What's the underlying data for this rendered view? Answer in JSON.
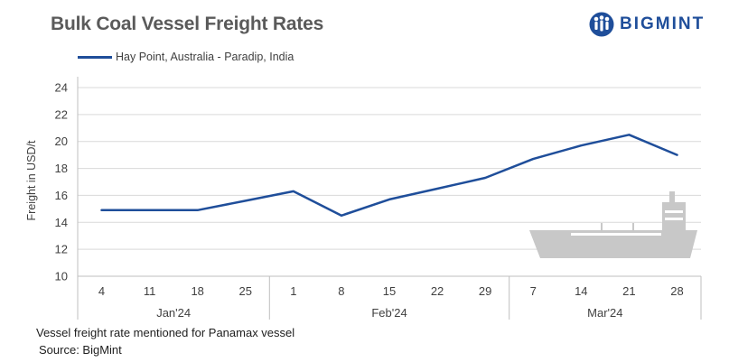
{
  "header": {
    "title": "Bulk Coal Vessel Freight Rates",
    "logo_text": "BIGMINT"
  },
  "footer": {
    "note": "Vessel freight rate mentioned for Panamax  vessel",
    "source": "Source: BigMint"
  },
  "colors": {
    "series": "#1f4e9a",
    "title": "#5a5a5a",
    "grid": "#d9d9d9",
    "ship": "#c8c8c8"
  },
  "icons": [
    "bigmint-logo-icon",
    "ship-icon"
  ],
  "chart_data": {
    "type": "line",
    "title": "Bulk Coal Vessel Freight Rates",
    "ylabel": "Freight  in USD/t",
    "xlabel": "",
    "ylim": [
      10,
      24
    ],
    "yticks": [
      10,
      12,
      14,
      16,
      18,
      20,
      22,
      24
    ],
    "grid": "horizontal",
    "legend": "top-left",
    "categories": [
      "4",
      "11",
      "18",
      "25",
      "1",
      "8",
      "15",
      "22",
      "29",
      "7",
      "14",
      "21",
      "28"
    ],
    "month_groups": [
      {
        "label": "Jan'24",
        "count": 4
      },
      {
        "label": "Feb'24",
        "count": 5
      },
      {
        "label": "Mar'24",
        "count": 4
      }
    ],
    "series": [
      {
        "name": "Hay Point, Australia - Paradip, India",
        "values": [
          14.9,
          14.9,
          14.9,
          15.6,
          16.3,
          14.5,
          15.7,
          16.5,
          17.3,
          18.7,
          19.7,
          20.5,
          19.0
        ]
      }
    ]
  }
}
